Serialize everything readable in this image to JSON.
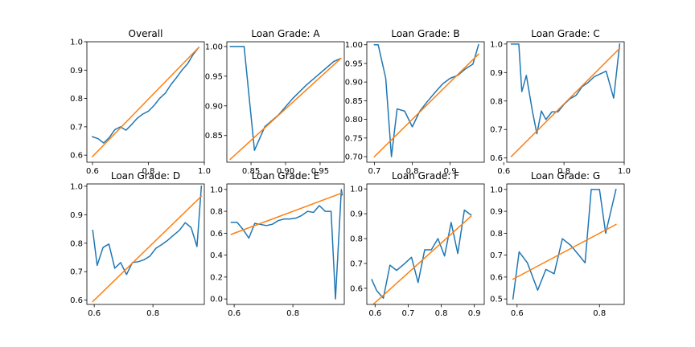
{
  "figure": {
    "background": "#ffffff"
  },
  "colors": {
    "observed": "#1f77b4",
    "reference": "#ff7f0e"
  },
  "chart_data": [
    {
      "type": "line",
      "title": "Overall",
      "xlim": [
        0.58,
        1.0
      ],
      "ylim": [
        0.575,
        1.0
      ],
      "xticks": [
        0.6,
        0.8,
        1.0
      ],
      "xtick_labels": [
        "0.6",
        "0.8",
        "1.0"
      ],
      "yticks": [
        0.6,
        0.7,
        0.8,
        0.9,
        1.0
      ],
      "ytick_labels": [
        "0.6",
        "0.7",
        "0.8",
        "0.9",
        "1.0"
      ],
      "series": [
        {
          "x": [
            0.6,
            0.62,
            0.64,
            0.66,
            0.68,
            0.7,
            0.72,
            0.74,
            0.76,
            0.78,
            0.8,
            0.82,
            0.84,
            0.86,
            0.88,
            0.9,
            0.92,
            0.94,
            0.96,
            0.98
          ],
          "y": [
            0.665,
            0.658,
            0.643,
            0.662,
            0.69,
            0.7,
            0.688,
            0.708,
            0.73,
            0.745,
            0.755,
            0.775,
            0.8,
            0.818,
            0.848,
            0.873,
            0.9,
            0.922,
            0.955,
            0.98
          ]
        },
        {
          "x": [
            0.6,
            0.98
          ],
          "y": [
            0.595,
            0.98
          ]
        }
      ]
    },
    {
      "type": "line",
      "title": "Loan Grade: A",
      "xlim": [
        0.815,
        0.985
      ],
      "ylim": [
        0.805,
        1.008
      ],
      "xticks": [
        0.85,
        0.9,
        0.95
      ],
      "xtick_labels": [
        "0.85",
        "0.90",
        "0.95"
      ],
      "yticks": [
        0.85,
        0.9,
        0.95,
        1.0
      ],
      "ytick_labels": [
        "0.85",
        "0.90",
        "0.95",
        "1.00"
      ],
      "series": [
        {
          "x": [
            0.82,
            0.84,
            0.855,
            0.87,
            0.89,
            0.91,
            0.93,
            0.95,
            0.97,
            0.98
          ],
          "y": [
            1.0,
            1.0,
            0.825,
            0.865,
            0.885,
            0.912,
            0.935,
            0.955,
            0.975,
            0.98
          ]
        },
        {
          "x": [
            0.82,
            0.98
          ],
          "y": [
            0.81,
            0.98
          ]
        }
      ]
    },
    {
      "type": "line",
      "title": "Loan Grade: B",
      "xlim": [
        0.68,
        0.99
      ],
      "ylim": [
        0.685,
        1.008
      ],
      "xticks": [
        0.7,
        0.8,
        0.9
      ],
      "xtick_labels": [
        "0.7",
        "0.8",
        "0.9"
      ],
      "yticks": [
        0.7,
        0.75,
        0.8,
        0.85,
        0.9,
        0.95,
        1.0
      ],
      "ytick_labels": [
        "0.70",
        "0.75",
        "0.80",
        "0.85",
        "0.90",
        "0.95",
        "1.00"
      ],
      "series": [
        {
          "x": [
            0.7,
            0.71,
            0.73,
            0.745,
            0.76,
            0.78,
            0.8,
            0.82,
            0.84,
            0.86,
            0.88,
            0.9,
            0.92,
            0.94,
            0.96,
            0.975
          ],
          "y": [
            1.0,
            1.0,
            0.91,
            0.7,
            0.828,
            0.822,
            0.78,
            0.822,
            0.848,
            0.872,
            0.895,
            0.91,
            0.918,
            0.935,
            0.948,
            1.0
          ]
        },
        {
          "x": [
            0.7,
            0.975
          ],
          "y": [
            0.7,
            0.975
          ]
        }
      ]
    },
    {
      "type": "line",
      "title": "Loan Grade: C",
      "xlim": [
        0.61,
        1.0
      ],
      "ylim": [
        0.585,
        1.008
      ],
      "xticks": [
        0.6,
        0.8,
        1.0
      ],
      "xtick_labels": [
        "0.6",
        "0.8",
        "1.0"
      ],
      "yticks": [
        0.6,
        0.7,
        0.8,
        0.9,
        1.0
      ],
      "ytick_labels": [
        "0.6",
        "0.7",
        "0.8",
        "0.9",
        "1.0"
      ],
      "series": [
        {
          "x": [
            0.625,
            0.65,
            0.66,
            0.675,
            0.695,
            0.71,
            0.725,
            0.74,
            0.76,
            0.78,
            0.8,
            0.82,
            0.84,
            0.86,
            0.88,
            0.9,
            0.92,
            0.94,
            0.965,
            0.985
          ],
          "y": [
            1.0,
            1.0,
            0.833,
            0.89,
            0.765,
            0.685,
            0.765,
            0.735,
            0.762,
            0.762,
            0.788,
            0.808,
            0.82,
            0.85,
            0.865,
            0.885,
            0.895,
            0.905,
            0.81,
            1.0
          ]
        },
        {
          "x": [
            0.625,
            0.985
          ],
          "y": [
            0.605,
            0.985
          ]
        }
      ]
    },
    {
      "type": "line",
      "title": "Loan Grade: D",
      "xlim": [
        0.575,
        0.975
      ],
      "ylim": [
        0.585,
        1.008
      ],
      "xticks": [
        0.6,
        0.8
      ],
      "xtick_labels": [
        "0.6",
        "0.8"
      ],
      "yticks": [
        0.6,
        0.7,
        0.8,
        0.9,
        1.0
      ],
      "ytick_labels": [
        "0.6",
        "0.7",
        "0.8",
        "0.9",
        "1.0"
      ],
      "series": [
        {
          "x": [
            0.595,
            0.61,
            0.63,
            0.65,
            0.67,
            0.69,
            0.71,
            0.73,
            0.75,
            0.77,
            0.79,
            0.81,
            0.83,
            0.85,
            0.87,
            0.89,
            0.91,
            0.93,
            0.95,
            0.965
          ],
          "y": [
            0.845,
            0.722,
            0.785,
            0.797,
            0.712,
            0.732,
            0.69,
            0.732,
            0.735,
            0.742,
            0.755,
            0.782,
            0.795,
            0.81,
            0.828,
            0.845,
            0.872,
            0.855,
            0.788,
            1.0
          ]
        },
        {
          "x": [
            0.595,
            0.965
          ],
          "y": [
            0.595,
            0.965
          ]
        }
      ]
    },
    {
      "type": "line",
      "title": "Loan Grade: E",
      "xlim": [
        0.575,
        0.975
      ],
      "ylim": [
        -0.05,
        1.05
      ],
      "xticks": [
        0.6,
        0.8
      ],
      "xtick_labels": [
        "0.6",
        "0.8"
      ],
      "yticks": [
        0.0,
        0.2,
        0.4,
        0.6,
        0.8,
        1.0
      ],
      "ytick_labels": [
        "0.0",
        "0.2",
        "0.4",
        "0.6",
        "0.8",
        "1.0"
      ],
      "series": [
        {
          "x": [
            0.59,
            0.61,
            0.63,
            0.65,
            0.67,
            0.69,
            0.71,
            0.73,
            0.75,
            0.77,
            0.79,
            0.81,
            0.83,
            0.85,
            0.87,
            0.89,
            0.91,
            0.93,
            0.945,
            0.965,
            0.968
          ],
          "y": [
            0.7,
            0.7,
            0.635,
            0.555,
            0.69,
            0.68,
            0.67,
            0.682,
            0.715,
            0.73,
            0.73,
            0.738,
            0.762,
            0.8,
            0.79,
            0.852,
            0.8,
            0.8,
            0.0,
            1.0,
            0.95
          ]
        },
        {
          "x": [
            0.59,
            0.965
          ],
          "y": [
            0.59,
            0.965
          ]
        }
      ]
    },
    {
      "type": "line",
      "title": "Loan Grade: F",
      "xlim": [
        0.575,
        0.93
      ],
      "ylim": [
        0.535,
        1.02
      ],
      "xticks": [
        0.6,
        0.7,
        0.8,
        0.9
      ],
      "xtick_labels": [
        "0.6",
        "0.7",
        "0.8",
        "0.9"
      ],
      "yticks": [
        0.6,
        0.7,
        0.8,
        0.9,
        1.0
      ],
      "ytick_labels": [
        "0.6",
        "0.7",
        "0.8",
        "0.9",
        "1.0"
      ],
      "series": [
        {
          "x": [
            0.59,
            0.605,
            0.625,
            0.645,
            0.665,
            0.69,
            0.71,
            0.73,
            0.75,
            0.77,
            0.79,
            0.81,
            0.83,
            0.85,
            0.87,
            0.89
          ],
          "y": [
            0.635,
            0.59,
            0.56,
            0.693,
            0.672,
            0.7,
            0.725,
            0.623,
            0.755,
            0.755,
            0.8,
            0.73,
            0.865,
            0.74,
            0.915,
            0.895
          ]
        },
        {
          "x": [
            0.59,
            0.89
          ],
          "y": [
            0.53,
            0.89
          ]
        }
      ]
    },
    {
      "type": "line",
      "title": "Loan Grade: G",
      "xlim": [
        0.575,
        0.86
      ],
      "ylim": [
        0.475,
        1.025
      ],
      "xticks": [
        0.6,
        0.8
      ],
      "xtick_labels": [
        "0.6",
        "0.8"
      ],
      "yticks": [
        0.5,
        0.6,
        0.7,
        0.8,
        0.9,
        1.0
      ],
      "ytick_labels": [
        "0.5",
        "0.6",
        "0.7",
        "0.8",
        "0.9",
        "1.0"
      ],
      "series": [
        {
          "x": [
            0.59,
            0.605,
            0.625,
            0.65,
            0.67,
            0.69,
            0.71,
            0.73,
            0.75,
            0.765,
            0.78,
            0.8,
            0.815,
            0.84
          ],
          "y": [
            0.5,
            0.715,
            0.665,
            0.54,
            0.635,
            0.615,
            0.775,
            0.745,
            0.7,
            0.665,
            1.0,
            1.0,
            0.8,
            1.0
          ]
        },
        {
          "x": [
            0.59,
            0.84
          ],
          "y": [
            0.59,
            0.84
          ]
        }
      ]
    }
  ]
}
